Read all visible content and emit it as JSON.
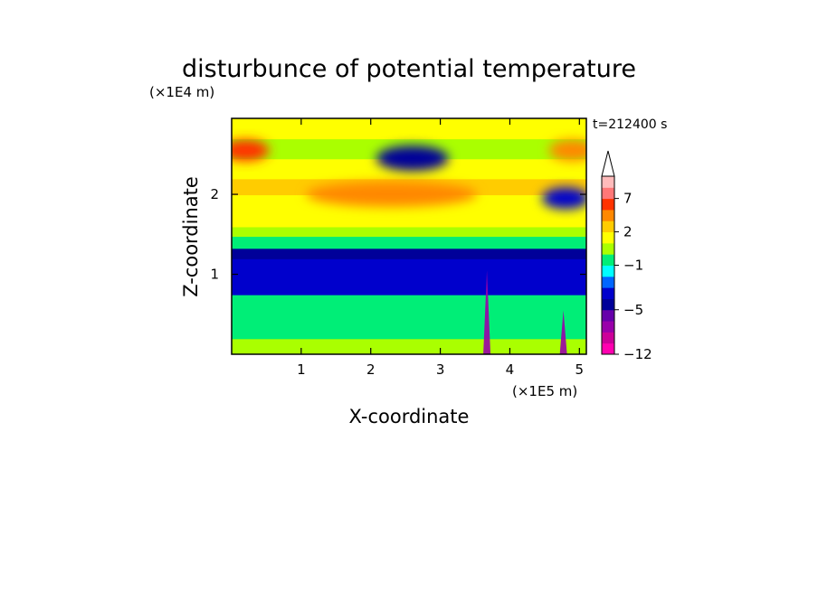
{
  "chart_data": {
    "type": "heatmap",
    "title": "disturbunce of potential temperature",
    "time_label": "t=212400 s",
    "xlabel": "X-coordinate",
    "ylabel": "Z-coordinate",
    "x_unit": "(×1E5 m)",
    "y_unit": "(×1E4 m)",
    "xlim": [
      0,
      5.1
    ],
    "ylim": [
      0,
      2.95
    ],
    "x_ticks": [
      1,
      2,
      3,
      4,
      5
    ],
    "y_ticks": [
      1,
      2
    ],
    "colorbar": {
      "levels": [
        -12,
        -10,
        -8,
        -6,
        -5,
        -4,
        -3,
        -2,
        -1,
        0,
        1,
        2,
        3,
        5,
        7,
        9
      ],
      "labels": [
        "-12",
        "-5",
        "-1",
        "2",
        "7"
      ],
      "label_levels": [
        -12,
        -5,
        -1,
        2,
        7
      ],
      "colors": [
        "#ff00b0",
        "#cc0099",
        "#9900aa",
        "#6600aa",
        "#000099",
        "#0000cc",
        "#0066ff",
        "#00ffff",
        "#00ee77",
        "#aaff00",
        "#ffff00",
        "#ffcc00",
        "#ff8800",
        "#ff3300",
        "#ff7777",
        "#ffbbbb"
      ],
      "extend": "max"
    },
    "layers": [
      {
        "z": 0.0,
        "value": 0
      },
      {
        "z": 0.2,
        "value": -1
      },
      {
        "z": 0.55,
        "value": -1
      },
      {
        "z": 0.75,
        "value": -4
      },
      {
        "z": 1.2,
        "value": -5
      },
      {
        "z": 1.33,
        "value": -1
      },
      {
        "z": 1.48,
        "value": 0
      },
      {
        "z": 1.6,
        "value": 1
      },
      {
        "z": 1.8,
        "value": 1
      },
      {
        "z": 2.0,
        "value": 2
      },
      {
        "z": 2.2,
        "value": 1
      },
      {
        "z": 2.45,
        "value": 0
      },
      {
        "z": 2.7,
        "value": 1
      },
      {
        "z": 2.95,
        "value": 2
      }
    ],
    "features": [
      {
        "kind": "cold_cell",
        "x": 2.6,
        "z": 2.45,
        "value": -5
      },
      {
        "kind": "warm_cell",
        "x": 0.2,
        "z": 2.55,
        "value": 5
      },
      {
        "kind": "warm_cell",
        "x": 4.9,
        "z": 2.55,
        "value": 3
      },
      {
        "kind": "warm_band",
        "x": 2.3,
        "z": 2.0,
        "value": 3
      },
      {
        "kind": "cold_cell",
        "x": 4.8,
        "z": 1.95,
        "value": -4
      },
      {
        "kind": "spike",
        "x": 3.67,
        "z": 1.05,
        "value": -8
      },
      {
        "kind": "spike",
        "x": 4.77,
        "z": 0.55,
        "value": -8
      }
    ]
  }
}
